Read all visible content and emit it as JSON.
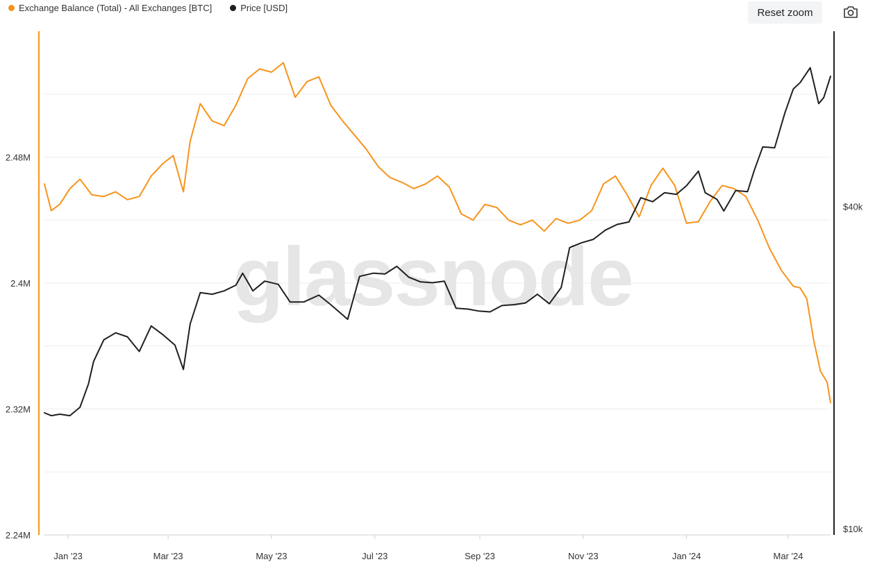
{
  "legend": {
    "balance_label": "Exchange Balance (Total) - All Exchanges [BTC]",
    "price_label": "Price [USD]",
    "balance_color": "#f7931a",
    "price_color": "#1f1f1f"
  },
  "toolbar": {
    "reset_zoom_label": "Reset zoom",
    "camera_icon": "camera-icon"
  },
  "watermark": "glassnode",
  "chart_data": {
    "type": "line",
    "x_range": [
      "2022-12-18",
      "2024-03-26"
    ],
    "x_ticks": [
      {
        "date": "2023-01-01",
        "label": "Jan '23"
      },
      {
        "date": "2023-03-01",
        "label": "Mar '23"
      },
      {
        "date": "2023-05-01",
        "label": "May '23"
      },
      {
        "date": "2023-07-01",
        "label": "Jul '23"
      },
      {
        "date": "2023-09-01",
        "label": "Sep '23"
      },
      {
        "date": "2023-11-01",
        "label": "Nov '23"
      },
      {
        "date": "2024-01-01",
        "label": "Jan '24"
      },
      {
        "date": "2024-03-01",
        "label": "Mar '24"
      }
    ],
    "y_left": {
      "scale": "linear",
      "range": [
        2240000,
        2560000
      ],
      "ticks": [
        {
          "value": 2240000,
          "label": "2.24M"
        },
        {
          "value": 2320000,
          "label": "2.32M"
        },
        {
          "value": 2400000,
          "label": "2.4M"
        },
        {
          "value": 2480000,
          "label": "2.48M"
        }
      ]
    },
    "y_right": {
      "scale": "log",
      "range": [
        10000,
        85000
      ],
      "ticks": [
        {
          "value": 10000,
          "label": "$10k"
        },
        {
          "value": 40000,
          "label": "$40k"
        }
      ]
    },
    "grid": true,
    "legend_position": "top-left",
    "series": [
      {
        "name": "Exchange Balance (Total) - All Exchanges [BTC]",
        "axis": "left",
        "color": "#f7931a",
        "points": [
          [
            "2022-12-18",
            2463000
          ],
          [
            "2022-12-22",
            2446000
          ],
          [
            "2022-12-27",
            2450000
          ],
          [
            "2023-01-02",
            2460000
          ],
          [
            "2023-01-08",
            2466000
          ],
          [
            "2023-01-15",
            2456000
          ],
          [
            "2023-01-22",
            2455000
          ],
          [
            "2023-01-29",
            2458000
          ],
          [
            "2023-02-05",
            2453000
          ],
          [
            "2023-02-12",
            2455000
          ],
          [
            "2023-02-19",
            2468000
          ],
          [
            "2023-02-26",
            2476000
          ],
          [
            "2023-03-04",
            2481000
          ],
          [
            "2023-03-10",
            2458000
          ],
          [
            "2023-03-14",
            2490000
          ],
          [
            "2023-03-20",
            2514000
          ],
          [
            "2023-03-27",
            2503000
          ],
          [
            "2023-04-03",
            2500000
          ],
          [
            "2023-04-10",
            2513000
          ],
          [
            "2023-04-17",
            2530000
          ],
          [
            "2023-04-24",
            2536000
          ],
          [
            "2023-05-01",
            2534000
          ],
          [
            "2023-05-08",
            2540000
          ],
          [
            "2023-05-15",
            2518000
          ],
          [
            "2023-05-22",
            2528000
          ],
          [
            "2023-05-29",
            2531000
          ],
          [
            "2023-06-05",
            2513000
          ],
          [
            "2023-06-12",
            2503000
          ],
          [
            "2023-06-19",
            2494000
          ],
          [
            "2023-06-26",
            2485000
          ],
          [
            "2023-07-03",
            2474000
          ],
          [
            "2023-07-10",
            2467000
          ],
          [
            "2023-07-17",
            2464000
          ],
          [
            "2023-07-24",
            2460000
          ],
          [
            "2023-07-31",
            2463000
          ],
          [
            "2023-08-07",
            2468000
          ],
          [
            "2023-08-14",
            2461000
          ],
          [
            "2023-08-21",
            2444000
          ],
          [
            "2023-08-28",
            2440000
          ],
          [
            "2023-09-04",
            2450000
          ],
          [
            "2023-09-11",
            2448000
          ],
          [
            "2023-09-18",
            2440000
          ],
          [
            "2023-09-25",
            2437000
          ],
          [
            "2023-10-02",
            2440000
          ],
          [
            "2023-10-09",
            2433000
          ],
          [
            "2023-10-16",
            2441000
          ],
          [
            "2023-10-23",
            2438000
          ],
          [
            "2023-10-30",
            2440000
          ],
          [
            "2023-11-06",
            2446000
          ],
          [
            "2023-11-13",
            2463000
          ],
          [
            "2023-11-20",
            2468000
          ],
          [
            "2023-11-27",
            2456000
          ],
          [
            "2023-12-04",
            2442000
          ],
          [
            "2023-12-11",
            2462000
          ],
          [
            "2023-12-18",
            2473000
          ],
          [
            "2023-12-25",
            2462000
          ],
          [
            "2024-01-01",
            2438000
          ],
          [
            "2024-01-08",
            2439000
          ],
          [
            "2024-01-15",
            2452000
          ],
          [
            "2024-01-22",
            2462000
          ],
          [
            "2024-01-29",
            2460000
          ],
          [
            "2024-02-05",
            2455000
          ],
          [
            "2024-02-12",
            2440000
          ],
          [
            "2024-02-19",
            2422000
          ],
          [
            "2024-02-26",
            2408000
          ],
          [
            "2024-03-04",
            2398000
          ],
          [
            "2024-03-08",
            2397000
          ],
          [
            "2024-03-12",
            2390000
          ],
          [
            "2024-03-16",
            2364000
          ],
          [
            "2024-03-20",
            2344000
          ],
          [
            "2024-03-24",
            2337000
          ],
          [
            "2024-03-26",
            2324000
          ]
        ]
      },
      {
        "name": "Price [USD]",
        "axis": "right",
        "color": "#1f1f1f",
        "points": [
          [
            "2022-12-18",
            16800
          ],
          [
            "2022-12-22",
            16600
          ],
          [
            "2022-12-27",
            16700
          ],
          [
            "2023-01-02",
            16600
          ],
          [
            "2023-01-08",
            17200
          ],
          [
            "2023-01-13",
            19000
          ],
          [
            "2023-01-16",
            20900
          ],
          [
            "2023-01-22",
            22900
          ],
          [
            "2023-01-29",
            23600
          ],
          [
            "2023-02-05",
            23200
          ],
          [
            "2023-02-12",
            21800
          ],
          [
            "2023-02-19",
            24300
          ],
          [
            "2023-02-26",
            23400
          ],
          [
            "2023-03-05",
            22400
          ],
          [
            "2023-03-10",
            20200
          ],
          [
            "2023-03-14",
            24500
          ],
          [
            "2023-03-20",
            28000
          ],
          [
            "2023-03-27",
            27800
          ],
          [
            "2023-04-03",
            28200
          ],
          [
            "2023-04-10",
            28900
          ],
          [
            "2023-04-14",
            30400
          ],
          [
            "2023-04-20",
            28200
          ],
          [
            "2023-04-27",
            29400
          ],
          [
            "2023-05-05",
            29000
          ],
          [
            "2023-05-12",
            26900
          ],
          [
            "2023-05-20",
            26900
          ],
          [
            "2023-05-29",
            27700
          ],
          [
            "2023-06-05",
            26600
          ],
          [
            "2023-06-15",
            25000
          ],
          [
            "2023-06-22",
            30000
          ],
          [
            "2023-06-30",
            30400
          ],
          [
            "2023-07-07",
            30300
          ],
          [
            "2023-07-14",
            31300
          ],
          [
            "2023-07-21",
            29900
          ],
          [
            "2023-07-28",
            29300
          ],
          [
            "2023-08-04",
            29200
          ],
          [
            "2023-08-11",
            29400
          ],
          [
            "2023-08-18",
            26200
          ],
          [
            "2023-08-25",
            26100
          ],
          [
            "2023-08-31",
            25900
          ],
          [
            "2023-09-07",
            25800
          ],
          [
            "2023-09-14",
            26500
          ],
          [
            "2023-09-21",
            26600
          ],
          [
            "2023-09-28",
            26800
          ],
          [
            "2023-10-05",
            27800
          ],
          [
            "2023-10-12",
            26700
          ],
          [
            "2023-10-19",
            28600
          ],
          [
            "2023-10-24",
            33900
          ],
          [
            "2023-10-31",
            34600
          ],
          [
            "2023-11-07",
            35100
          ],
          [
            "2023-11-14",
            36500
          ],
          [
            "2023-11-21",
            37400
          ],
          [
            "2023-11-28",
            37800
          ],
          [
            "2023-12-05",
            41900
          ],
          [
            "2023-12-12",
            41200
          ],
          [
            "2023-12-19",
            42800
          ],
          [
            "2023-12-26",
            42500
          ],
          [
            "2024-01-01",
            44100
          ],
          [
            "2024-01-08",
            46900
          ],
          [
            "2024-01-12",
            42800
          ],
          [
            "2024-01-19",
            41600
          ],
          [
            "2024-01-23",
            39600
          ],
          [
            "2024-01-30",
            43200
          ],
          [
            "2024-02-06",
            43000
          ],
          [
            "2024-02-10",
            47100
          ],
          [
            "2024-02-15",
            52000
          ],
          [
            "2024-02-22",
            51800
          ],
          [
            "2024-02-28",
            60000
          ],
          [
            "2024-03-04",
            66500
          ],
          [
            "2024-03-08",
            68300
          ],
          [
            "2024-03-14",
            72800
          ],
          [
            "2024-03-19",
            62500
          ],
          [
            "2024-03-22",
            64100
          ],
          [
            "2024-03-26",
            70200
          ]
        ]
      }
    ]
  }
}
